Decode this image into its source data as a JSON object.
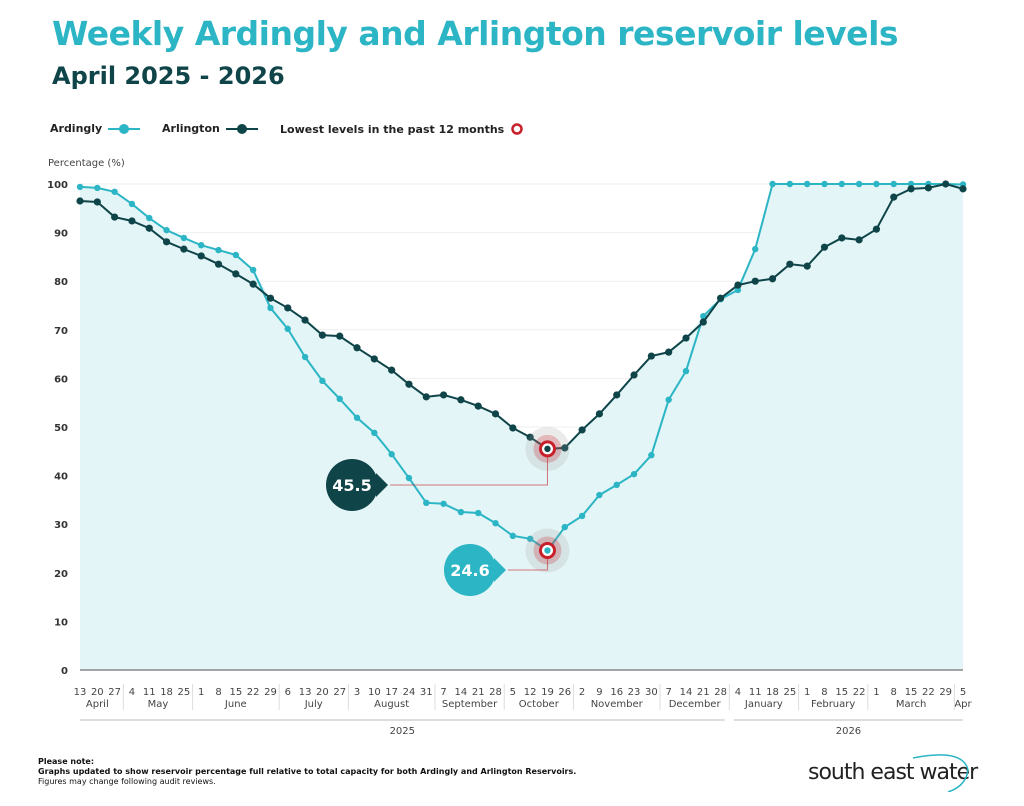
{
  "chart_data": {
    "type": "line",
    "title": "Weekly Ardingly and Arlington reservoir levels",
    "subtitle": "April 2025 - 2026",
    "ylabel": "Percentage (%)",
    "ylim": [
      0,
      100
    ],
    "yticks": [
      0,
      10,
      20,
      30,
      40,
      50,
      60,
      70,
      80,
      90,
      100
    ],
    "grid": true,
    "legend_placement": "top-left",
    "x_day_labels": [
      "13",
      "20",
      "27",
      "4",
      "11",
      "18",
      "25",
      "1",
      "8",
      "15",
      "22",
      "29",
      "6",
      "13",
      "20",
      "27",
      "3",
      "10",
      "17",
      "24",
      "31",
      "7",
      "14",
      "21",
      "28",
      "5",
      "12",
      "19",
      "26",
      "2",
      "9",
      "16",
      "23",
      "30",
      "7",
      "14",
      "21",
      "28",
      "4",
      "11",
      "18",
      "25",
      "1",
      "8",
      "15",
      "22",
      "1",
      "8",
      "15",
      "22",
      "29",
      "5"
    ],
    "months": [
      {
        "label": "April",
        "count": 3
      },
      {
        "label": "May",
        "count": 4
      },
      {
        "label": "June",
        "count": 5
      },
      {
        "label": "July",
        "count": 4
      },
      {
        "label": "August",
        "count": 5
      },
      {
        "label": "September",
        "count": 4
      },
      {
        "label": "October",
        "count": 4
      },
      {
        "label": "November",
        "count": 5
      },
      {
        "label": "December",
        "count": 4
      },
      {
        "label": "January",
        "count": 4
      },
      {
        "label": "February",
        "count": 4
      },
      {
        "label": "March",
        "count": 5
      },
      {
        "label": "Apr",
        "count": 1
      }
    ],
    "years": [
      {
        "label": "2025",
        "months": 9
      },
      {
        "label": "2026",
        "months": 4
      }
    ],
    "series": [
      {
        "name": "Ardingly",
        "color": "#2bb5c5",
        "values": [
          99.4,
          99.2,
          98.4,
          95.9,
          93.0,
          90.5,
          88.9,
          87.4,
          86.4,
          85.4,
          82.3,
          74.5,
          70.2,
          64.4,
          59.5,
          55.8,
          51.9,
          48.8,
          44.4,
          39.5,
          34.4,
          34.2,
          32.5,
          32.3,
          30.2,
          27.6,
          27.0,
          24.6,
          29.4,
          31.7,
          36.0,
          38.1,
          40.3,
          44.2,
          55.6,
          61.5,
          72.8,
          76.3,
          78.2,
          86.6,
          100,
          100,
          100,
          100,
          100,
          100,
          100,
          100,
          100,
          100,
          100,
          99.9
        ]
      },
      {
        "name": "Arlington",
        "color": "#0f4448",
        "values": [
          96.5,
          96.3,
          93.2,
          92.4,
          90.9,
          88.1,
          86.6,
          85.2,
          83.5,
          81.5,
          79.4,
          76.5,
          74.5,
          72.0,
          68.9,
          68.7,
          66.3,
          64.0,
          61.7,
          58.8,
          56.2,
          56.6,
          55.6,
          54.3,
          52.7,
          49.8,
          47.9,
          45.5,
          45.7,
          49.4,
          52.7,
          56.6,
          60.7,
          64.6,
          65.4,
          68.3,
          71.6,
          76.5,
          79.2,
          80.0,
          80.5,
          83.5,
          83.1,
          87.0,
          88.9,
          88.5,
          90.7,
          97.3,
          99.0,
          99.2,
          100,
          99.0
        ]
      }
    ],
    "annotations": [
      {
        "series": "Arlington",
        "date": "19 October",
        "value": "45.5"
      },
      {
        "series": "Ardingly",
        "date": "19 October",
        "value": "24.6"
      }
    ],
    "legend_lowest": "Lowest levels in the past 12 months",
    "lowest_marker_color": "#c8202a",
    "fill_color": "#e4f5f7"
  },
  "footer": {
    "note_title": "Please note:",
    "note_line1": "Graphs updated to show reservoir percentage full relative to total capacity for both Ardingly and Arlington Reservoirs.",
    "note_line2": "Figures may change following audit reviews.",
    "logo_text": "south east water"
  }
}
